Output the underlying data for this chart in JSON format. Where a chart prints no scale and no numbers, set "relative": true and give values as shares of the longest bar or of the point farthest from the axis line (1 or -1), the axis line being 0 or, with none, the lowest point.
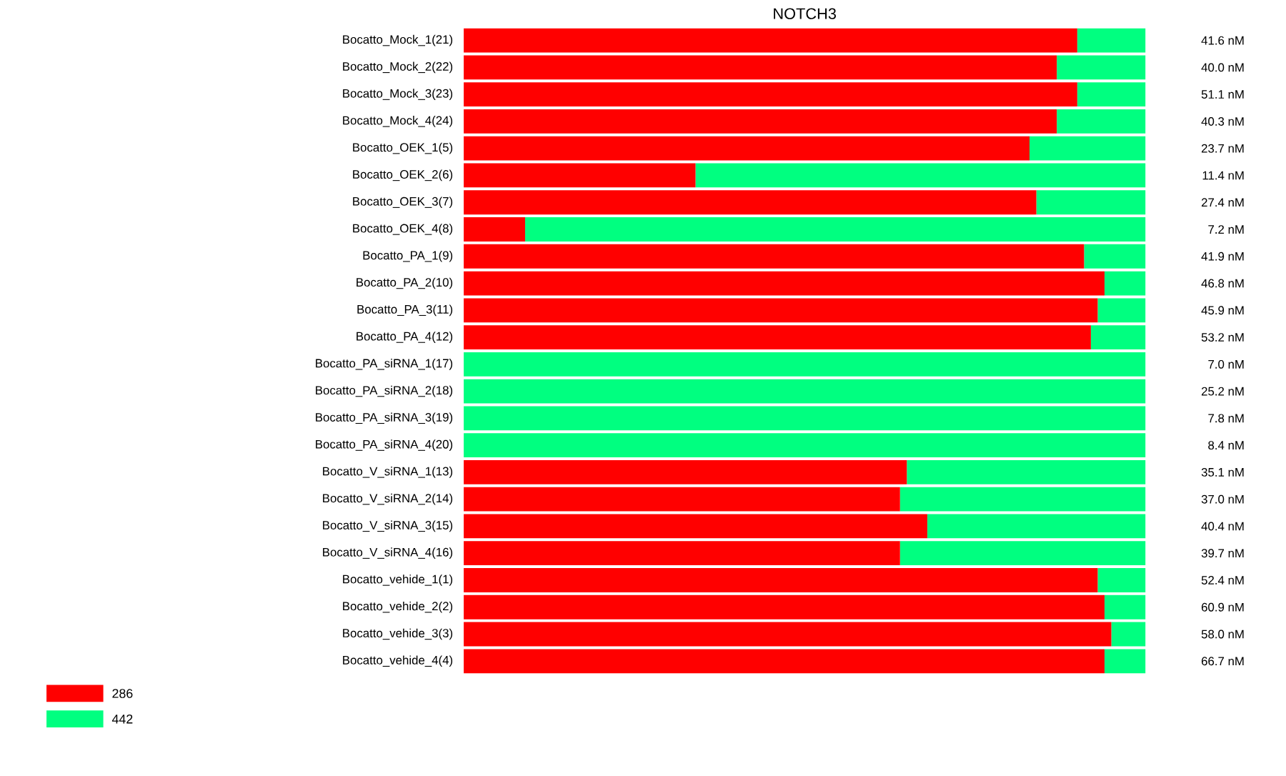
{
  "chart_data": {
    "type": "bar",
    "orientation": "horizontal",
    "stacked": true,
    "relative": true,
    "title": "NOTCH3",
    "legend": "bottom left",
    "categories": [
      "Bocatto_Mock_1(21)",
      "Bocatto_Mock_2(22)",
      "Bocatto_Mock_3(23)",
      "Bocatto_Mock_4(24)",
      "Bocatto_OEK_1(5)",
      "Bocatto_OEK_2(6)",
      "Bocatto_OEK_3(7)",
      "Bocatto_OEK_4(8)",
      "Bocatto_PA_1(9)",
      "Bocatto_PA_2(10)",
      "Bocatto_PA_3(11)",
      "Bocatto_PA_4(12)",
      "Bocatto_PA_siRNA_1(17)",
      "Bocatto_PA_siRNA_2(18)",
      "Bocatto_PA_siRNA_3(19)",
      "Bocatto_PA_siRNA_4(20)",
      "Bocatto_V_siRNA_1(13)",
      "Bocatto_V_siRNA_2(14)",
      "Bocatto_V_siRNA_3(15)",
      "Bocatto_V_siRNA_4(16)",
      "Bocatto_vehide_1(1)",
      "Bocatto_vehide_2(2)",
      "Bocatto_vehide_3(3)",
      "Bocatto_vehide_4(4)"
    ],
    "series": [
      {
        "name": "286",
        "color": "#ff0000",
        "values": [
          0.9,
          0.87,
          0.9,
          0.87,
          0.83,
          0.34,
          0.84,
          0.09,
          0.91,
          0.94,
          0.93,
          0.92,
          0,
          0,
          0,
          0,
          0.65,
          0.64,
          0.68,
          0.64,
          0.93,
          0.94,
          0.95,
          0.94
        ]
      },
      {
        "name": "442",
        "color": "#00ff80",
        "values": [
          0.1,
          0.13,
          0.1,
          0.13,
          0.17,
          0.66,
          0.16,
          0.91,
          0.09,
          0.06,
          0.07,
          0.08,
          1,
          1,
          1,
          1,
          0.35,
          0.36,
          0.32,
          0.36,
          0.07,
          0.06,
          0.05,
          0.06
        ]
      }
    ],
    "annotations": [
      "41.6 nM",
      "40.0 nM",
      "51.1 nM",
      "40.3 nM",
      "23.7 nM",
      "11.4 nM",
      "27.4 nM",
      "7.2 nM",
      "41.9 nM",
      "46.8 nM",
      "45.9 nM",
      "53.2 nM",
      "7.0 nM",
      "25.2 nM",
      "7.8 nM",
      "8.4 nM",
      "35.1 nM",
      "37.0 nM",
      "40.4 nM",
      "39.7 nM",
      "52.4 nM",
      "60.9 nM",
      "58.0 nM",
      "66.7 nM"
    ]
  }
}
